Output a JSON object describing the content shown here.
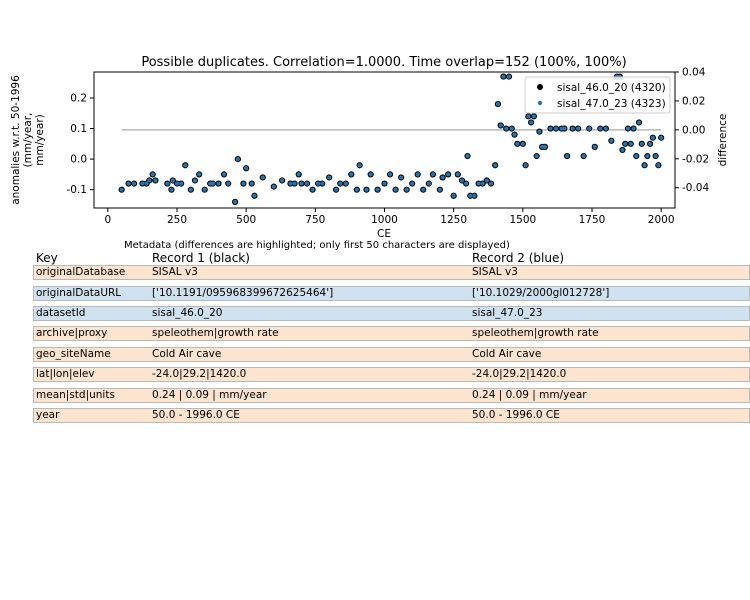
{
  "colors": {
    "record1": "#000000",
    "record2": "#1f77b4",
    "same_row": "#fde4ce",
    "diff_row": "#d0e2f0",
    "diff_line": "#aaaaaa"
  },
  "chart_data": {
    "type": "scatter",
    "title": "Possible duplicates. Correlation=1.0000. Time overlap=152 (100%, 100%)",
    "xlabel": "CE",
    "ylabel": "anomalies w.r.t. 50-1996\n(mm/year,\nmm/year)",
    "ylabel_right": "difference",
    "xlim": [
      -50,
      2050
    ],
    "ylim": [
      -0.16,
      0.285
    ],
    "ylim_right": [
      -0.054,
      0.04
    ],
    "xticks": [
      0,
      250,
      500,
      750,
      1000,
      1250,
      1500,
      1750,
      2000
    ],
    "yticks": [
      -0.1,
      0.0,
      0.1,
      0.2
    ],
    "yticks_right": [
      -0.04,
      -0.02,
      0.0,
      0.02,
      0.04
    ],
    "legend_position": "top-right",
    "series": [
      {
        "name": "sisal_46.0_20 (4320)",
        "color": "#000000",
        "marker": "black-filled-circle",
        "points": [
          [
            50,
            -0.1
          ],
          [
            75,
            -0.08
          ],
          [
            95,
            -0.08
          ],
          [
            125,
            -0.08
          ],
          [
            140,
            -0.08
          ],
          [
            150,
            -0.07
          ],
          [
            162,
            -0.05
          ],
          [
            172,
            -0.07
          ],
          [
            215,
            -0.08
          ],
          [
            230,
            -0.1
          ],
          [
            235,
            -0.07
          ],
          [
            250,
            -0.08
          ],
          [
            265,
            -0.08
          ],
          [
            280,
            -0.02
          ],
          [
            300,
            -0.1
          ],
          [
            315,
            -0.07
          ],
          [
            330,
            -0.05
          ],
          [
            350,
            -0.1
          ],
          [
            370,
            -0.08
          ],
          [
            380,
            -0.08
          ],
          [
            400,
            -0.08
          ],
          [
            420,
            -0.05
          ],
          [
            435,
            -0.08
          ],
          [
            460,
            -0.14
          ],
          [
            470,
            0.0
          ],
          [
            490,
            -0.08
          ],
          [
            500,
            -0.03
          ],
          [
            520,
            -0.08
          ],
          [
            530,
            -0.12
          ],
          [
            560,
            -0.06
          ],
          [
            600,
            -0.09
          ],
          [
            630,
            -0.07
          ],
          [
            660,
            -0.08
          ],
          [
            675,
            -0.08
          ],
          [
            690,
            -0.05
          ],
          [
            700,
            -0.08
          ],
          [
            720,
            -0.08
          ],
          [
            740,
            -0.1
          ],
          [
            760,
            -0.08
          ],
          [
            775,
            -0.08
          ],
          [
            800,
            -0.06
          ],
          [
            825,
            -0.1
          ],
          [
            840,
            -0.08
          ],
          [
            860,
            -0.08
          ],
          [
            880,
            -0.05
          ],
          [
            900,
            -0.1
          ],
          [
            910,
            -0.02
          ],
          [
            935,
            -0.1
          ],
          [
            950,
            -0.05
          ],
          [
            975,
            -0.1
          ],
          [
            1000,
            -0.08
          ],
          [
            1020,
            -0.05
          ],
          [
            1040,
            -0.1
          ],
          [
            1060,
            -0.06
          ],
          [
            1080,
            -0.1
          ],
          [
            1100,
            -0.08
          ],
          [
            1120,
            -0.05
          ],
          [
            1140,
            -0.1
          ],
          [
            1160,
            -0.08
          ],
          [
            1175,
            -0.05
          ],
          [
            1200,
            -0.1
          ],
          [
            1210,
            -0.06
          ],
          [
            1230,
            -0.05
          ],
          [
            1250,
            -0.12
          ],
          [
            1265,
            -0.05
          ],
          [
            1280,
            -0.07
          ],
          [
            1295,
            -0.08
          ],
          [
            1300,
            0.01
          ],
          [
            1310,
            -0.12
          ],
          [
            1325,
            -0.12
          ],
          [
            1340,
            -0.08
          ],
          [
            1355,
            -0.08
          ],
          [
            1370,
            -0.07
          ],
          [
            1385,
            -0.08
          ],
          [
            1400,
            -0.02
          ],
          [
            1410,
            0.18
          ],
          [
            1420,
            0.11
          ],
          [
            1430,
            0.27
          ],
          [
            1440,
            0.1
          ],
          [
            1450,
            0.27
          ],
          [
            1460,
            0.1
          ],
          [
            1470,
            0.08
          ],
          [
            1480,
            0.05
          ],
          [
            1500,
            0.05
          ],
          [
            1510,
            -0.02
          ],
          [
            1520,
            0.14
          ],
          [
            1530,
            0.12
          ],
          [
            1540,
            0.14
          ],
          [
            1550,
            0.01
          ],
          [
            1560,
            0.09
          ],
          [
            1570,
            0.04
          ],
          [
            1580,
            0.04
          ],
          [
            1600,
            0.1
          ],
          [
            1620,
            0.1
          ],
          [
            1640,
            0.1
          ],
          [
            1650,
            0.1
          ],
          [
            1660,
            0.01
          ],
          [
            1680,
            0.1
          ],
          [
            1700,
            0.1
          ],
          [
            1720,
            0.01
          ],
          [
            1740,
            0.1
          ],
          [
            1760,
            0.04
          ],
          [
            1780,
            0.1
          ],
          [
            1800,
            0.1
          ],
          [
            1820,
            0.06
          ],
          [
            1840,
            0.27
          ],
          [
            1850,
            0.27
          ],
          [
            1860,
            0.03
          ],
          [
            1870,
            0.05
          ],
          [
            1880,
            0.1
          ],
          [
            1890,
            0.05
          ],
          [
            1900,
            0.1
          ],
          [
            1910,
            0.01
          ],
          [
            1920,
            0.12
          ],
          [
            1930,
            0.05
          ],
          [
            1940,
            -0.02
          ],
          [
            1950,
            0.01
          ],
          [
            1960,
            0.05
          ],
          [
            1970,
            0.07
          ],
          [
            1980,
            0.01
          ],
          [
            1990,
            -0.02
          ],
          [
            2000,
            0.07
          ]
        ]
      },
      {
        "name": "sisal_47.0_23 (4323)",
        "color": "#1f77b4",
        "marker": "blue-dot",
        "points": [
          [
            50,
            -0.1
          ],
          [
            75,
            -0.08
          ],
          [
            95,
            -0.08
          ],
          [
            125,
            -0.08
          ],
          [
            140,
            -0.08
          ],
          [
            150,
            -0.07
          ],
          [
            162,
            -0.05
          ],
          [
            172,
            -0.07
          ],
          [
            215,
            -0.08
          ],
          [
            230,
            -0.1
          ],
          [
            235,
            -0.07
          ],
          [
            250,
            -0.08
          ],
          [
            265,
            -0.08
          ],
          [
            280,
            -0.02
          ],
          [
            300,
            -0.1
          ],
          [
            315,
            -0.07
          ],
          [
            330,
            -0.05
          ],
          [
            350,
            -0.1
          ],
          [
            370,
            -0.08
          ],
          [
            380,
            -0.08
          ],
          [
            400,
            -0.08
          ],
          [
            420,
            -0.05
          ],
          [
            435,
            -0.08
          ],
          [
            460,
            -0.14
          ],
          [
            470,
            0.0
          ],
          [
            490,
            -0.08
          ],
          [
            500,
            -0.03
          ],
          [
            520,
            -0.08
          ],
          [
            530,
            -0.12
          ],
          [
            560,
            -0.06
          ],
          [
            600,
            -0.09
          ],
          [
            630,
            -0.07
          ],
          [
            660,
            -0.08
          ],
          [
            675,
            -0.08
          ],
          [
            690,
            -0.05
          ],
          [
            700,
            -0.08
          ],
          [
            720,
            -0.08
          ],
          [
            740,
            -0.1
          ],
          [
            760,
            -0.08
          ],
          [
            775,
            -0.08
          ],
          [
            800,
            -0.06
          ],
          [
            825,
            -0.1
          ],
          [
            840,
            -0.08
          ],
          [
            860,
            -0.08
          ],
          [
            880,
            -0.05
          ],
          [
            900,
            -0.1
          ],
          [
            910,
            -0.02
          ],
          [
            935,
            -0.1
          ],
          [
            950,
            -0.05
          ],
          [
            975,
            -0.1
          ],
          [
            1000,
            -0.08
          ],
          [
            1020,
            -0.05
          ],
          [
            1040,
            -0.1
          ],
          [
            1060,
            -0.06
          ],
          [
            1080,
            -0.1
          ],
          [
            1100,
            -0.08
          ],
          [
            1120,
            -0.05
          ],
          [
            1140,
            -0.1
          ],
          [
            1160,
            -0.08
          ],
          [
            1175,
            -0.05
          ],
          [
            1200,
            -0.1
          ],
          [
            1210,
            -0.06
          ],
          [
            1230,
            -0.05
          ],
          [
            1250,
            -0.12
          ],
          [
            1265,
            -0.05
          ],
          [
            1280,
            -0.07
          ],
          [
            1295,
            -0.08
          ],
          [
            1300,
            0.01
          ],
          [
            1310,
            -0.12
          ],
          [
            1325,
            -0.12
          ],
          [
            1340,
            -0.08
          ],
          [
            1355,
            -0.08
          ],
          [
            1370,
            -0.07
          ],
          [
            1385,
            -0.08
          ],
          [
            1400,
            -0.02
          ],
          [
            1410,
            0.18
          ],
          [
            1420,
            0.11
          ],
          [
            1430,
            0.27
          ],
          [
            1440,
            0.1
          ],
          [
            1450,
            0.27
          ],
          [
            1460,
            0.1
          ],
          [
            1470,
            0.08
          ],
          [
            1480,
            0.05
          ],
          [
            1500,
            0.05
          ],
          [
            1510,
            -0.02
          ],
          [
            1520,
            0.14
          ],
          [
            1530,
            0.12
          ],
          [
            1540,
            0.14
          ],
          [
            1550,
            0.01
          ],
          [
            1560,
            0.09
          ],
          [
            1570,
            0.04
          ],
          [
            1580,
            0.04
          ],
          [
            1600,
            0.1
          ],
          [
            1620,
            0.1
          ],
          [
            1640,
            0.1
          ],
          [
            1650,
            0.1
          ],
          [
            1660,
            0.01
          ],
          [
            1680,
            0.1
          ],
          [
            1700,
            0.1
          ],
          [
            1720,
            0.01
          ],
          [
            1740,
            0.1
          ],
          [
            1760,
            0.04
          ],
          [
            1780,
            0.1
          ],
          [
            1800,
            0.1
          ],
          [
            1820,
            0.06
          ],
          [
            1840,
            0.27
          ],
          [
            1850,
            0.27
          ],
          [
            1860,
            0.03
          ],
          [
            1870,
            0.05
          ],
          [
            1880,
            0.1
          ],
          [
            1890,
            0.05
          ],
          [
            1900,
            0.1
          ],
          [
            1910,
            0.01
          ],
          [
            1920,
            0.12
          ],
          [
            1930,
            0.05
          ],
          [
            1940,
            -0.02
          ],
          [
            1950,
            0.01
          ],
          [
            1960,
            0.05
          ],
          [
            1970,
            0.07
          ],
          [
            1980,
            0.01
          ],
          [
            1990,
            -0.02
          ],
          [
            2000,
            0.07
          ]
        ]
      },
      {
        "name": "difference",
        "axis": "right",
        "color": "#aaaaaa",
        "type": "line",
        "points": [
          [
            50,
            0.0
          ],
          [
            2000,
            0.0
          ]
        ]
      }
    ]
  },
  "metadata": {
    "title": "Metadata (differences are highlighted; only first 50 characters are displayed)",
    "header": {
      "key": "Key",
      "record1": "Record 1 (black)",
      "record2": "Record 2 (blue)"
    },
    "rows": [
      {
        "key": "originalDatabase",
        "r1": "SISAL v3",
        "r2": "SISAL v3",
        "differs": false
      },
      {
        "key": "originalDataURL",
        "r1": "['10.1191/095968399672625464']",
        "r2": "['10.1029/2000gl012728']",
        "differs": true
      },
      {
        "key": "datasetId",
        "r1": "sisal_46.0_20",
        "r2": "sisal_47.0_23",
        "differs": true
      },
      {
        "key": "archive|proxy",
        "r1": "speleothem|growth rate",
        "r2": "speleothem|growth rate",
        "differs": false
      },
      {
        "key": "geo_siteName",
        "r1": "Cold Air cave",
        "r2": "Cold Air cave",
        "differs": false
      },
      {
        "key": "lat|lon|elev",
        "r1": "-24.0|29.2|1420.0",
        "r2": "-24.0|29.2|1420.0",
        "differs": false
      },
      {
        "key": "mean|std|units",
        "r1": "0.24 | 0.09 | mm/year",
        "r2": "0.24 | 0.09 | mm/year",
        "differs": false
      },
      {
        "key": "year",
        "r1": "50.0 - 1996.0 CE",
        "r2": "50.0 - 1996.0 CE",
        "differs": false
      }
    ]
  }
}
